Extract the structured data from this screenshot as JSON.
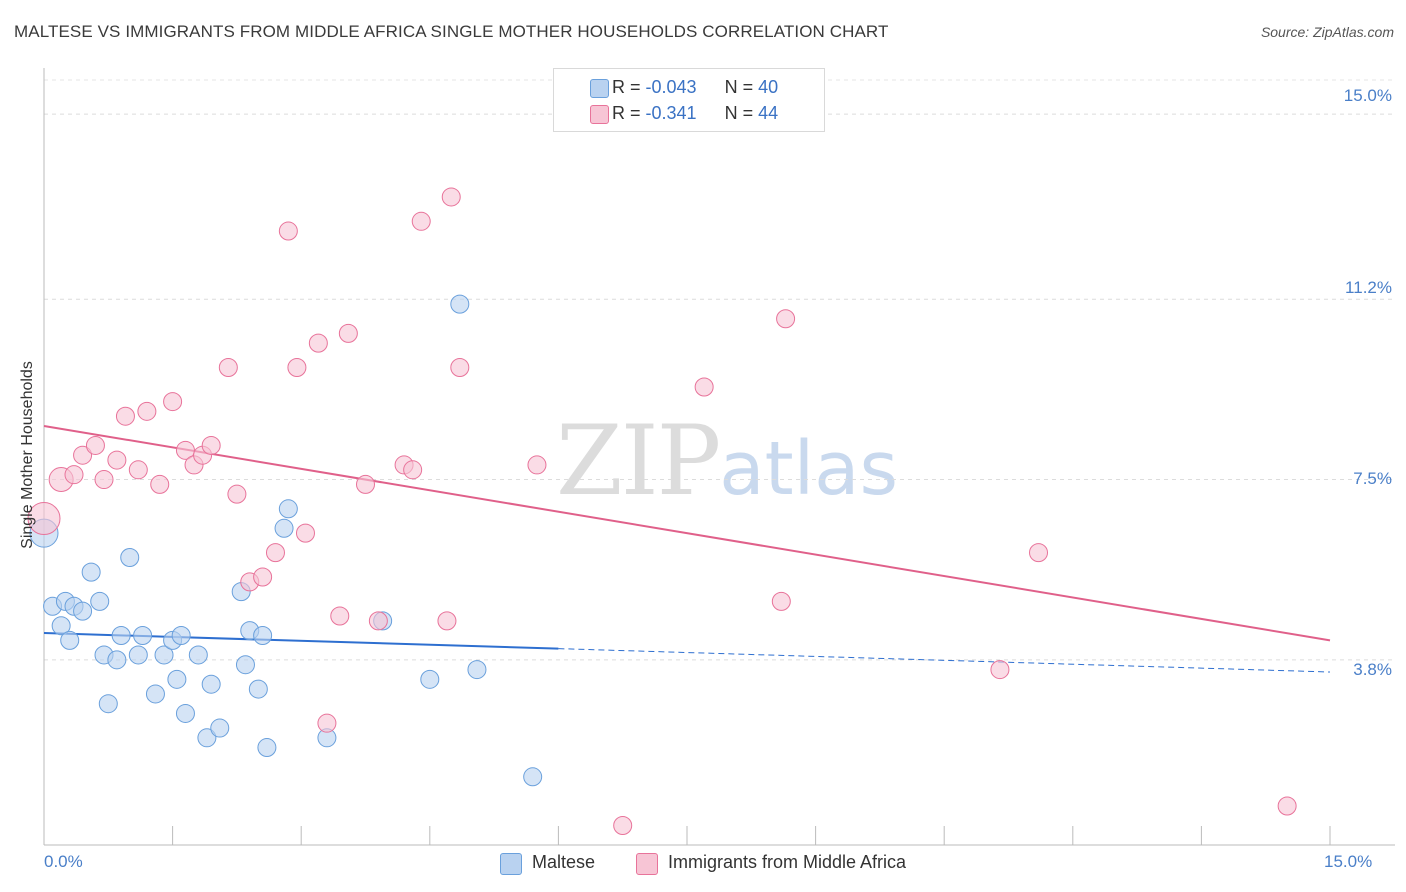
{
  "title": "MALTESE VS IMMIGRANTS FROM MIDDLE AFRICA SINGLE MOTHER HOUSEHOLDS CORRELATION CHART",
  "source": "Source: ZipAtlas.com",
  "watermark": {
    "zip": "ZIP",
    "atlas": "atlas"
  },
  "colors": {
    "blue": "#6aa0dc",
    "blue_fill": "#b9d2f0",
    "pink": "#e8739a",
    "pink_fill": "#f7c5d5",
    "blue_line": "#2e6fd0",
    "pink_line": "#e0608a",
    "tick_text": "#4a7fc8"
  },
  "legend": {
    "rows": [
      {
        "r_label": "R = ",
        "r_value": "-0.043",
        "n_label": "N = ",
        "n_value": "40"
      },
      {
        "r_label": "R = ",
        "r_value": "-0.341",
        "n_label": "N = ",
        "n_value": "44"
      }
    ]
  },
  "bottom_legend": [
    "Maltese",
    "Immigrants from Middle Africa"
  ],
  "chart_data": {
    "type": "scatter",
    "title": "MALTESE VS IMMIGRANTS FROM MIDDLE AFRICA SINGLE MOTHER HOUSEHOLDS CORRELATION CHART",
    "xlabel": "",
    "ylabel": "Single Mother Households",
    "xlim": [
      0,
      15
    ],
    "ylim": [
      0,
      15.7
    ],
    "x_tick_labels": [
      "0.0%",
      "15.0%"
    ],
    "y_ticks": [
      3.8,
      7.5,
      11.2,
      15.0
    ],
    "y_tick_labels": [
      "3.8%",
      "7.5%",
      "11.2%",
      "15.0%"
    ],
    "grid": true,
    "series": [
      {
        "name": "Maltese",
        "color": "#6aa0dc",
        "points": [
          [
            0.0,
            6.4,
            14
          ],
          [
            0.1,
            4.9,
            9
          ],
          [
            0.2,
            4.5,
            9
          ],
          [
            0.25,
            5.0,
            9
          ],
          [
            0.3,
            4.2,
            9
          ],
          [
            0.35,
            4.9,
            9
          ],
          [
            0.45,
            4.8,
            9
          ],
          [
            0.55,
            5.6,
            9
          ],
          [
            0.65,
            5.0,
            9
          ],
          [
            0.7,
            3.9,
            9
          ],
          [
            0.75,
            2.9,
            9
          ],
          [
            0.85,
            3.8,
            9
          ],
          [
            0.9,
            4.3,
            9
          ],
          [
            1.0,
            5.9,
            9
          ],
          [
            1.1,
            3.9,
            9
          ],
          [
            1.15,
            4.3,
            9
          ],
          [
            1.3,
            3.1,
            9
          ],
          [
            1.4,
            3.9,
            9
          ],
          [
            1.5,
            4.2,
            9
          ],
          [
            1.55,
            3.4,
            9
          ],
          [
            1.6,
            4.3,
            9
          ],
          [
            1.65,
            2.7,
            9
          ],
          [
            1.8,
            3.9,
            9
          ],
          [
            1.9,
            2.2,
            9
          ],
          [
            1.95,
            3.3,
            9
          ],
          [
            2.05,
            2.4,
            9
          ],
          [
            2.3,
            5.2,
            9
          ],
          [
            2.35,
            3.7,
            9
          ],
          [
            2.4,
            4.4,
            9
          ],
          [
            2.5,
            3.2,
            9
          ],
          [
            2.55,
            4.3,
            9
          ],
          [
            2.6,
            2.0,
            9
          ],
          [
            2.8,
            6.5,
            9
          ],
          [
            2.85,
            6.9,
            9
          ],
          [
            3.3,
            2.2,
            9
          ],
          [
            3.95,
            4.6,
            9
          ],
          [
            4.5,
            3.4,
            9
          ],
          [
            4.85,
            11.1,
            9
          ],
          [
            5.05,
            3.6,
            9
          ],
          [
            5.7,
            1.4,
            9
          ]
        ]
      },
      {
        "name": "Immigrants from Middle Africa",
        "color": "#e8739a",
        "points": [
          [
            0.0,
            6.7,
            16
          ],
          [
            0.2,
            7.5,
            12
          ],
          [
            0.35,
            7.6,
            9
          ],
          [
            0.45,
            8.0,
            9
          ],
          [
            0.6,
            8.2,
            9
          ],
          [
            0.7,
            7.5,
            9
          ],
          [
            0.85,
            7.9,
            9
          ],
          [
            0.95,
            8.8,
            9
          ],
          [
            1.1,
            7.7,
            9
          ],
          [
            1.2,
            8.9,
            9
          ],
          [
            1.35,
            7.4,
            9
          ],
          [
            1.5,
            9.1,
            9
          ],
          [
            1.65,
            8.1,
            9
          ],
          [
            1.75,
            7.8,
            9
          ],
          [
            1.85,
            8.0,
            9
          ],
          [
            1.95,
            8.2,
            9
          ],
          [
            2.15,
            9.8,
            9
          ],
          [
            2.25,
            7.2,
            9
          ],
          [
            2.4,
            5.4,
            9
          ],
          [
            2.55,
            5.5,
            9
          ],
          [
            2.7,
            6.0,
            9
          ],
          [
            2.85,
            12.6,
            9
          ],
          [
            2.95,
            9.8,
            9
          ],
          [
            3.05,
            6.4,
            9
          ],
          [
            3.2,
            10.3,
            9
          ],
          [
            3.3,
            2.5,
            9
          ],
          [
            3.45,
            4.7,
            9
          ],
          [
            3.55,
            10.5,
            9
          ],
          [
            3.75,
            7.4,
            9
          ],
          [
            3.9,
            4.6,
            9
          ],
          [
            4.2,
            7.8,
            9
          ],
          [
            4.3,
            7.7,
            9
          ],
          [
            4.4,
            12.8,
            9
          ],
          [
            4.7,
            4.6,
            9
          ],
          [
            4.75,
            13.3,
            9
          ],
          [
            4.85,
            9.8,
            9
          ],
          [
            5.75,
            7.8,
            9
          ],
          [
            6.75,
            0.4,
            9
          ],
          [
            7.7,
            9.4,
            9
          ],
          [
            8.6,
            5.0,
            9
          ],
          [
            8.65,
            10.8,
            9
          ],
          [
            11.15,
            3.6,
            9
          ],
          [
            11.6,
            6.0,
            9
          ],
          [
            14.5,
            0.8,
            9
          ]
        ]
      }
    ],
    "trendlines": [
      {
        "series": "Maltese",
        "x": [
          0.0,
          15.0
        ],
        "y": [
          4.35,
          3.55
        ],
        "solid_until": 6.0
      },
      {
        "series": "Immigrants from Middle Africa",
        "x": [
          0.0,
          15.0
        ],
        "y": [
          8.6,
          4.2
        ]
      }
    ]
  }
}
